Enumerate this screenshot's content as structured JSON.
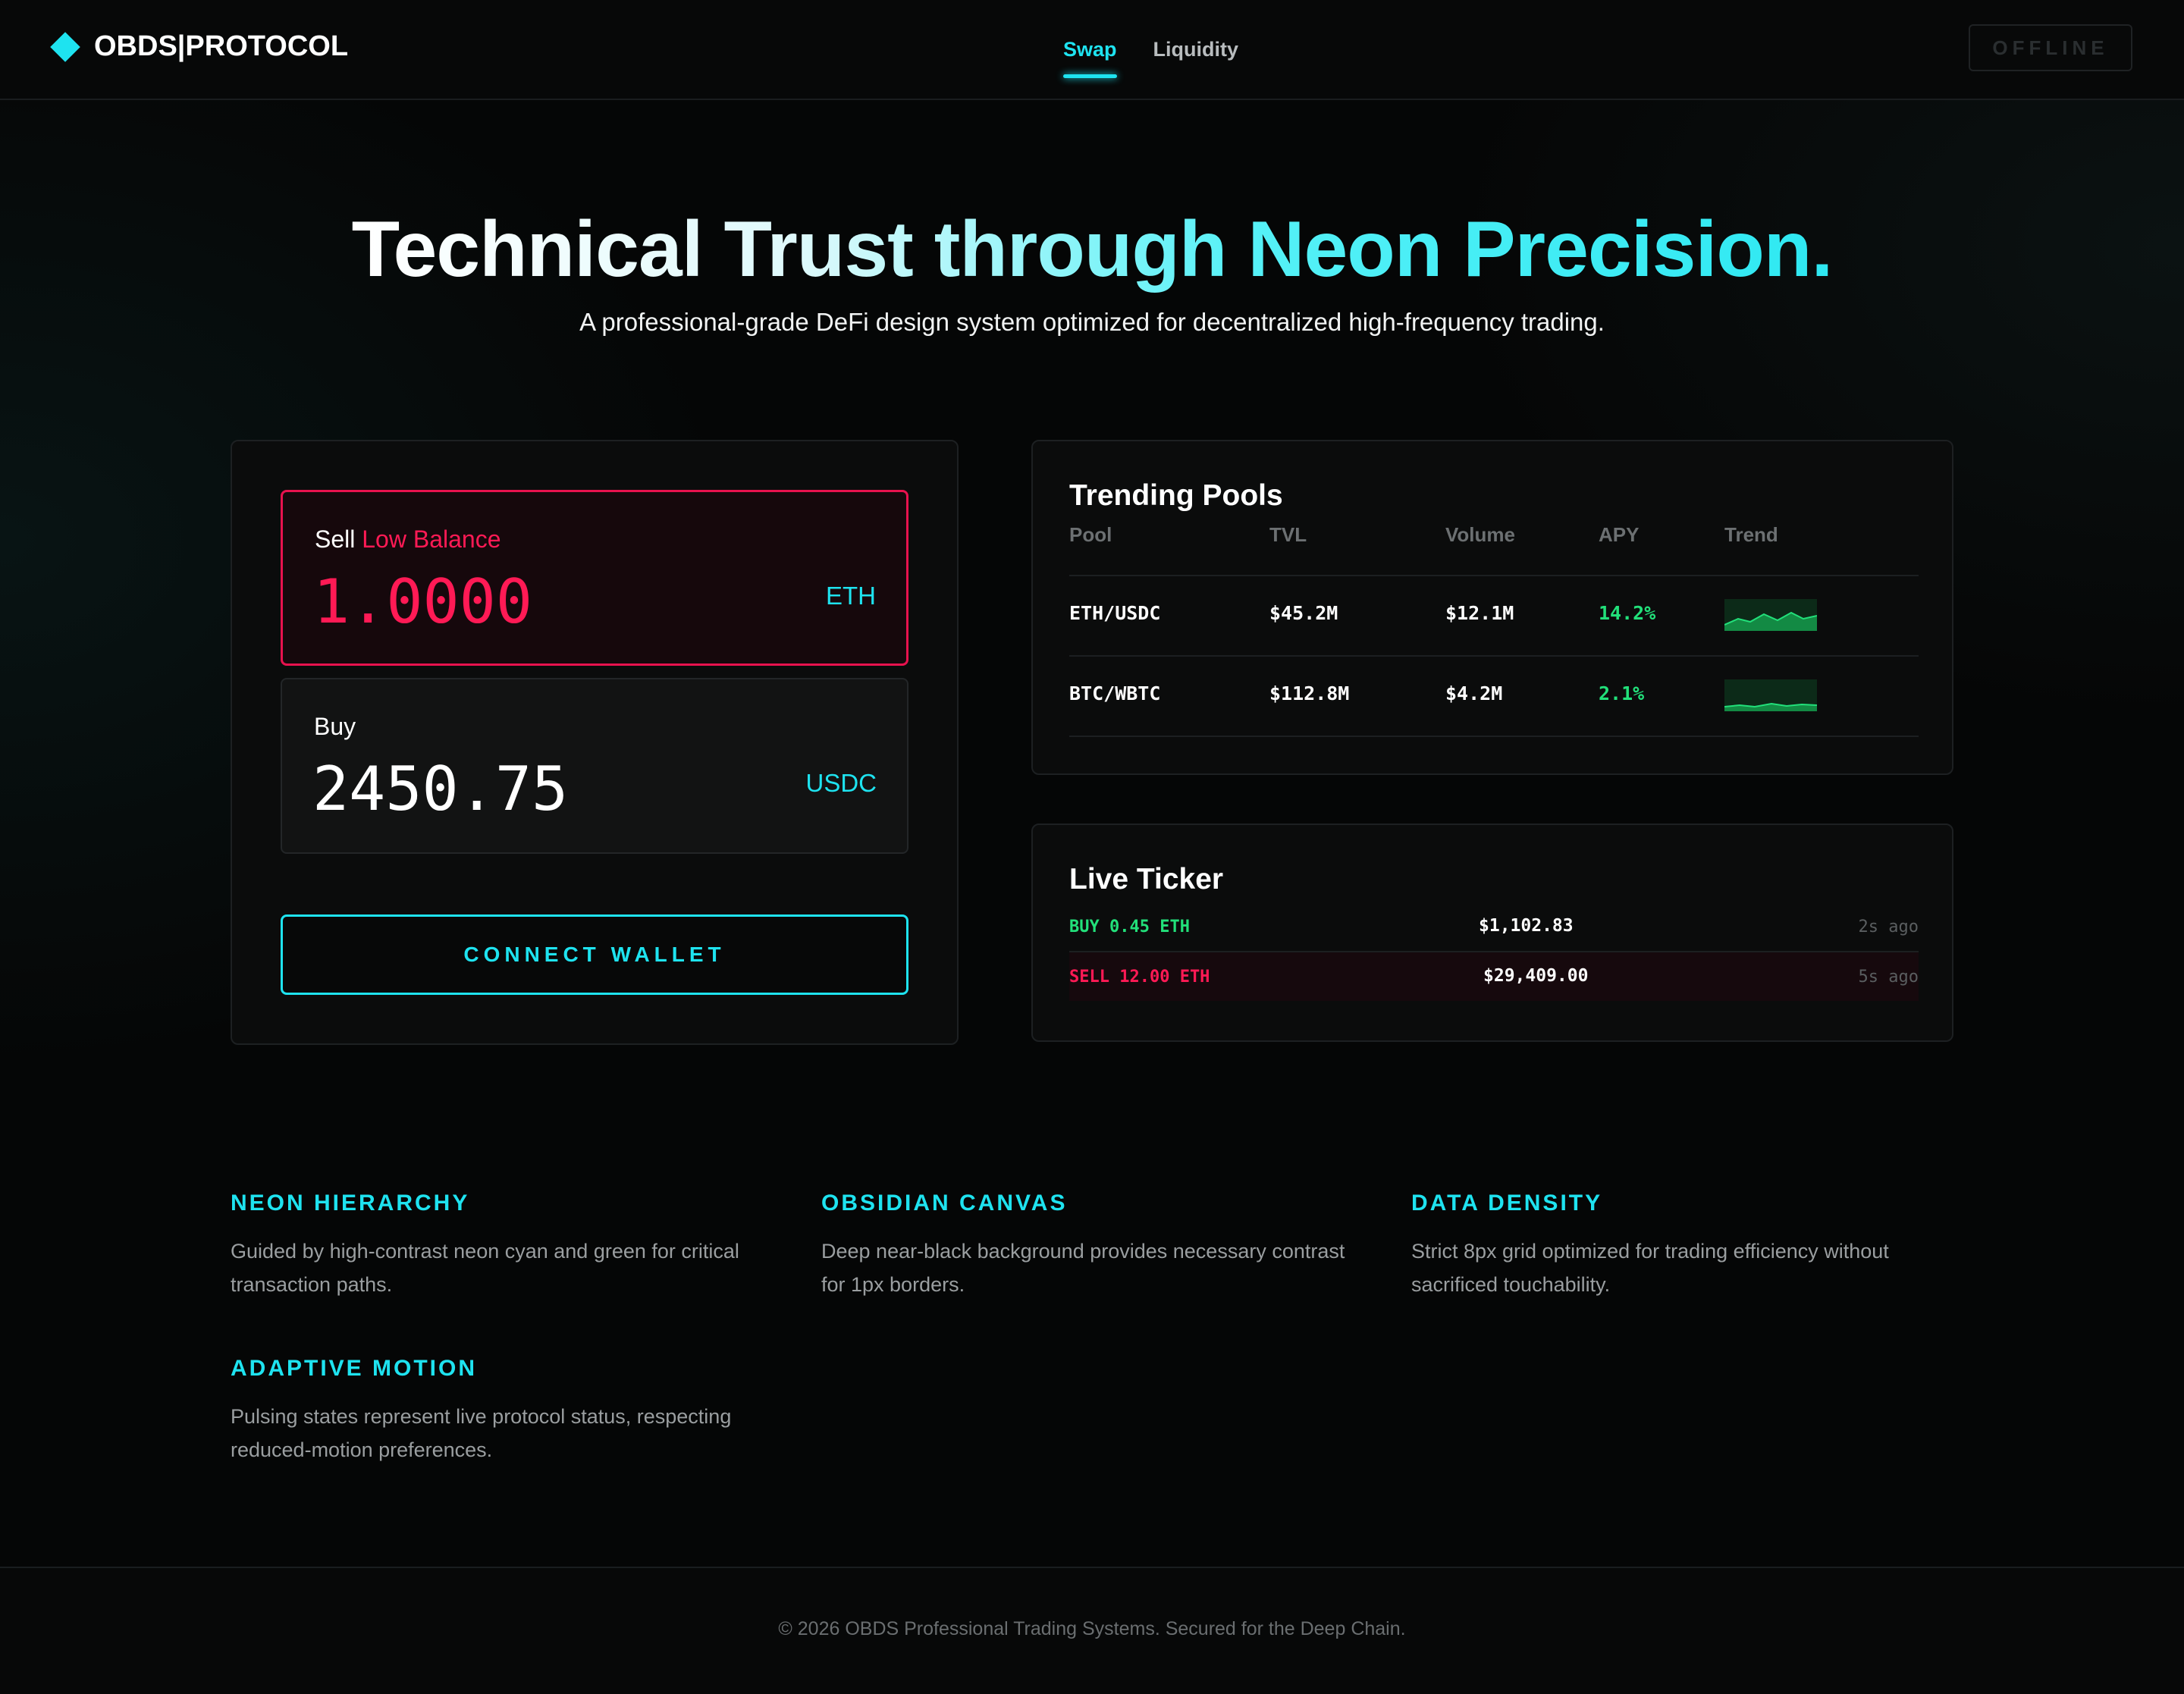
{
  "header": {
    "logo_text": "OBDS|PROTOCOL",
    "nav": [
      {
        "label": "Swap",
        "active": true
      },
      {
        "label": "Liquidity",
        "active": false
      }
    ],
    "status_label": "OFFLINE"
  },
  "hero": {
    "title": "Technical Trust through Neon Precision.",
    "subtitle": "A professional-grade DeFi design system optimized for decentralized high-frequency trading."
  },
  "swap": {
    "sell": {
      "label": "Sell",
      "warning": "Low Balance",
      "amount": "1.0000",
      "token": "ETH"
    },
    "buy": {
      "label": "Buy",
      "amount": "2450.75",
      "token": "USDC"
    },
    "connect_label": "CONNECT WALLET"
  },
  "pools": {
    "title": "Trending Pools",
    "columns": [
      "Pool",
      "TVL",
      "Volume",
      "APY",
      "Trend"
    ],
    "rows": [
      {
        "pool": "ETH/USDC",
        "tvl": "$45.2M",
        "volume": "$12.1M",
        "apy": "14.2%"
      },
      {
        "pool": "BTC/WBTC",
        "tvl": "$112.8M",
        "volume": "$4.2M",
        "apy": "2.1%"
      }
    ]
  },
  "ticker": {
    "title": "Live Ticker",
    "items": [
      {
        "side": "BUY 0.45 ETH",
        "price": "$1,102.83",
        "time": "2s ago",
        "type": "buy"
      },
      {
        "side": "SELL 12.00 ETH",
        "price": "$29,409.00",
        "time": "5s ago",
        "type": "sell"
      }
    ]
  },
  "features": [
    {
      "title": "NEON HIERARCHY",
      "desc": "Guided by high-contrast neon cyan and green for critical transaction paths."
    },
    {
      "title": "OBSIDIAN CANVAS",
      "desc": "Deep near-black background provides necessary contrast for 1px borders."
    },
    {
      "title": "DATA DENSITY",
      "desc": "Strict 8px grid optimized for trading efficiency without sacrificed touchability."
    },
    {
      "title": "ADAPTIVE MOTION",
      "desc": "Pulsing states represent live protocol status, respecting reduced-motion preferences."
    }
  ],
  "footer": {
    "text": "© 2026 OBDS Professional Trading Systems. Secured for the Deep Chain."
  },
  "colors": {
    "accent_cyan": "#1ee3f0",
    "accent_green": "#22e07a",
    "danger_red": "#ff1a55",
    "background": "#050606"
  },
  "icons": {
    "logo": "diamond-icon"
  }
}
